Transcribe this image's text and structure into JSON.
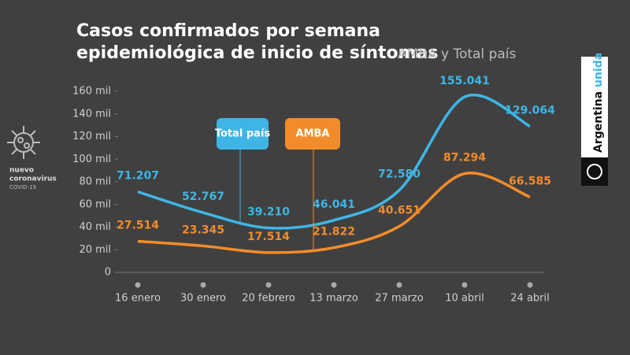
{
  "chart_data": {
    "type": "line",
    "title": [
      "Casos confirmados por semana",
      "epidemiológica de inicio de síntomas"
    ],
    "subtitle": "AMBA y Total país",
    "categories": [
      "16 enero",
      "30 enero",
      "20 febrero",
      "13 marzo",
      "27 marzo",
      "10 abril",
      "24 abril"
    ],
    "series": [
      {
        "name": "Total país",
        "color": "#3fb5e6",
        "values": [
          71207,
          52767,
          39210,
          46041,
          72580,
          155041,
          129064
        ],
        "value_labels": [
          "71.207",
          "52.767",
          "39.210",
          "46.041",
          "72.580",
          "155.041",
          "129.064"
        ]
      },
      {
        "name": "AMBA",
        "color": "#f28c2b",
        "values": [
          27514,
          23345,
          17514,
          21822,
          40651,
          87294,
          66585
        ],
        "value_labels": [
          "27.514",
          "23.345",
          "17.514",
          "21.822",
          "40.651",
          "87.294",
          "66.585"
        ]
      }
    ],
    "ylim": [
      0,
      160000
    ],
    "yticks": [
      0,
      {
        "value": 20000,
        "label": "20 mil"
      },
      {
        "value": 40000,
        "label": "40 mil"
      },
      {
        "value": 60000,
        "label": "60 mil"
      },
      {
        "value": 80000,
        "label": "80 mil"
      },
      {
        "value": 100000,
        "label": "100 mil"
      },
      {
        "value": 120000,
        "label": "120 mil"
      },
      {
        "value": 140000,
        "label": "140 mil"
      },
      {
        "value": 160000,
        "label": "160 mil"
      }
    ],
    "logo_text": [
      "nuevo",
      "coronavirus",
      "COVID-19"
    ],
    "badge": [
      "Argentina",
      "unida"
    ]
  }
}
